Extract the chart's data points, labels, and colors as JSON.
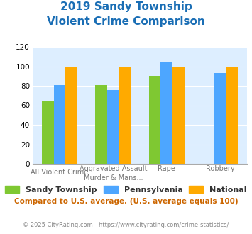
{
  "title_line1": "2019 Sandy Township",
  "title_line2": "Violent Crime Comparison",
  "series": {
    "Sandy Township": [
      64,
      81,
      90,
      0
    ],
    "Pennsylvania": [
      81,
      76,
      105,
      93
    ],
    "National": [
      100,
      100,
      100,
      100
    ]
  },
  "colors": {
    "Sandy Township": "#7fc832",
    "Pennsylvania": "#4da6ff",
    "National": "#ffaa00"
  },
  "ylim": [
    0,
    120
  ],
  "yticks": [
    0,
    20,
    40,
    60,
    80,
    100,
    120
  ],
  "title_color": "#1a6eb5",
  "plot_bg": "#ddeeff",
  "note_text": "Compared to U.S. average. (U.S. average equals 100)",
  "note_color": "#cc6600",
  "footer_text": "© 2025 CityRating.com - https://www.cityrating.com/crime-statistics/",
  "footer_color": "#888888",
  "legend_labels": [
    "Sandy Township",
    "Pennsylvania",
    "National"
  ],
  "top_labels": [
    "",
    "Aggravated Assault",
    "Rape",
    "Robbery"
  ],
  "bot_labels": [
    "All Violent Crime",
    "Murder & Mans...",
    "",
    ""
  ]
}
